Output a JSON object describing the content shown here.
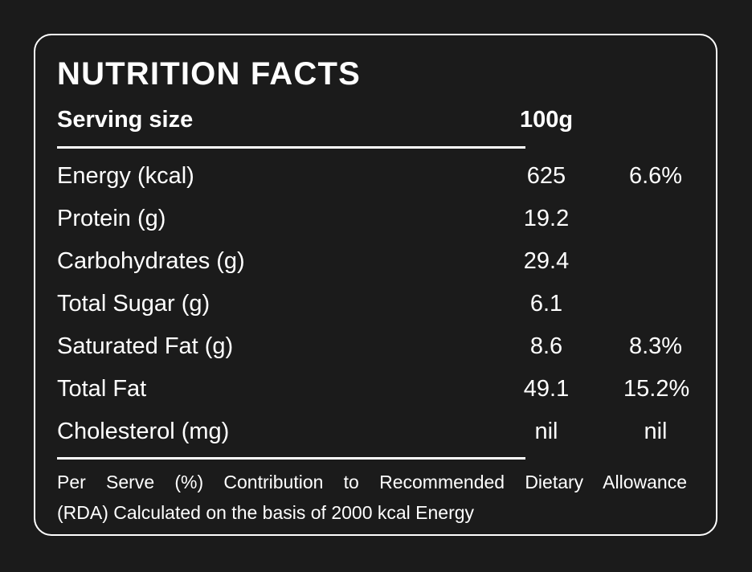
{
  "panel": {
    "title": "NUTRITION FACTS",
    "serving": {
      "label": "Serving size",
      "value": "100g"
    },
    "rows": [
      {
        "label": "Energy (kcal)",
        "value": "625",
        "percent": "6.6%"
      },
      {
        "label": "Protein (g)",
        "value": "19.2",
        "percent": ""
      },
      {
        "label": "Carbohydrates (g)",
        "value": "29.4",
        "percent": ""
      },
      {
        "label": "Total Sugar (g)",
        "value": "6.1",
        "percent": ""
      },
      {
        "label": "Saturated Fat (g)",
        "value": "8.6",
        "percent": "8.3%"
      },
      {
        "label": "Total Fat",
        "value": "49.1",
        "percent": "15.2%"
      },
      {
        "label": "Cholesterol (mg)",
        "value": "nil",
        "percent": "nil"
      }
    ],
    "footnote": {
      "line1": "Per Serve (%) Contribution to Recommended Dietary Allowance",
      "line2": "(RDA) Calculated on the basis of 2000 kcal Energy"
    },
    "colors": {
      "background": "#1b1b1b",
      "text": "#ffffff",
      "border": "#ffffff"
    }
  }
}
